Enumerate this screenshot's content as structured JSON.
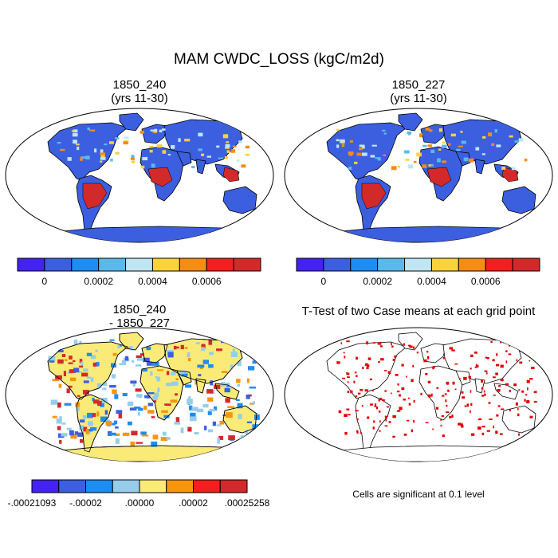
{
  "figure": {
    "title": "MAM CWDC_LOSS (kgC/m2d)"
  },
  "panels": {
    "top_left": {
      "title_line1": "1850_240",
      "title_line2": "(yrs 11-30)",
      "land_color": "#3C5FE0",
      "colorbar": {
        "colors": [
          "#4422F0",
          "#3C5FE0",
          "#1E8CF0",
          "#5AB9EA",
          "#BFE6F2",
          "#FAD23C",
          "#F58C14",
          "#F51E1E",
          "#D22A2A"
        ],
        "labels": [
          "0",
          "0.0002",
          "0.0004",
          "0.0006"
        ]
      }
    },
    "top_right": {
      "title_line1": "1850_227",
      "title_line2": "(yrs 11-30)",
      "land_color": "#3C5FE0",
      "colorbar": {
        "colors": [
          "#4422F0",
          "#3C5FE0",
          "#1E8CF0",
          "#5AB9EA",
          "#BFE6F2",
          "#FAD23C",
          "#F58C14",
          "#F51E1E",
          "#D22A2A"
        ],
        "labels": [
          "0",
          "0.0002",
          "0.0004",
          "0.0006"
        ]
      }
    },
    "bottom_left": {
      "title_line1": "1850_240",
      "title_line2": "- 1850_227",
      "land_color": "#FAEB78",
      "colorbar": {
        "colors": [
          "#4422F0",
          "#3C5FE0",
          "#1E8CF0",
          "#96CDEB",
          "#FAEB78",
          "#F5960F",
          "#F51E1E",
          "#D22A2A"
        ],
        "labels": [
          "-.00021093",
          "-.00002",
          ".00000",
          ".00002",
          ".00025258"
        ]
      }
    },
    "bottom_right": {
      "title_line1": "T-Test of two Case means at each grid point",
      "land_color": "#FFFFFF",
      "note": "Cells are significant at 0.1 level",
      "signif_color": "#E00000"
    }
  }
}
